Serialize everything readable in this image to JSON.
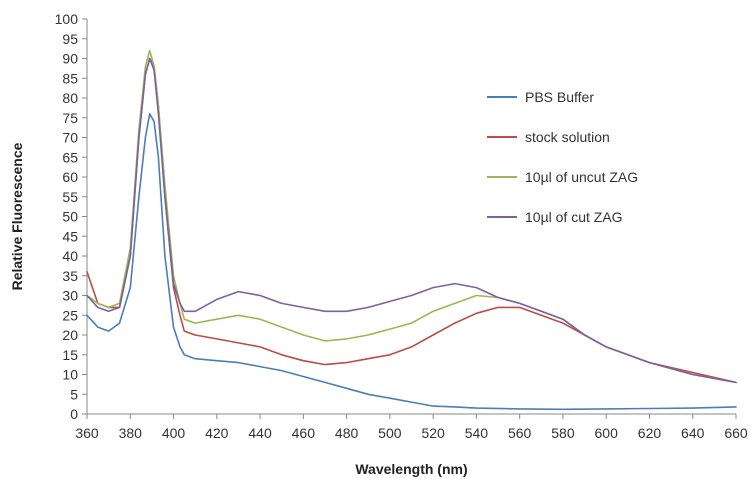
{
  "chart_data": {
    "type": "line",
    "title": "",
    "xlabel": "Wavelength (nm)",
    "ylabel": "Relative Fluorescence",
    "xlim": [
      360,
      660
    ],
    "ylim": [
      0,
      100
    ],
    "x_ticks": [
      360,
      380,
      400,
      420,
      440,
      460,
      480,
      500,
      520,
      540,
      560,
      580,
      600,
      620,
      640,
      660
    ],
    "y_ticks": [
      0,
      5,
      10,
      15,
      20,
      25,
      30,
      35,
      40,
      45,
      50,
      55,
      60,
      65,
      70,
      75,
      80,
      85,
      90,
      95,
      100
    ],
    "grid": false,
    "legend_position": "right",
    "series": [
      {
        "name": "PBS Buffer",
        "color": "#4a7ebb",
        "x": [
          360,
          365,
          370,
          375,
          380,
          384,
          387,
          389,
          391,
          393,
          396,
          400,
          403,
          405,
          410,
          420,
          430,
          440,
          450,
          460,
          470,
          480,
          490,
          500,
          510,
          520,
          530,
          540,
          560,
          580,
          600,
          620,
          640,
          660
        ],
        "y": [
          25,
          22,
          21,
          23,
          32,
          55,
          70,
          76,
          74,
          65,
          40,
          22,
          17,
          15,
          14,
          13.5,
          13,
          12,
          11,
          9.5,
          8,
          6.5,
          5,
          4,
          3,
          2,
          1.8,
          1.5,
          1.3,
          1.2,
          1.3,
          1.4,
          1.5,
          1.8
        ]
      },
      {
        "name": "stock solution",
        "color": "#be4b48",
        "x": [
          360,
          365,
          370,
          375,
          380,
          384,
          387,
          389,
          391,
          393,
          396,
          400,
          403,
          405,
          410,
          420,
          430,
          440,
          450,
          460,
          470,
          480,
          490,
          500,
          510,
          520,
          530,
          540,
          550,
          560,
          570,
          580,
          590,
          600,
          620,
          640,
          660
        ],
        "y": [
          36,
          28,
          27,
          27,
          40,
          70,
          86,
          90,
          88,
          78,
          55,
          32,
          25,
          21,
          20,
          19,
          18,
          17,
          15,
          13.5,
          12.5,
          13,
          14,
          15,
          17,
          20,
          23,
          25.5,
          27,
          27,
          25,
          23,
          20,
          17,
          13,
          10.5,
          8
        ]
      },
      {
        "name": "10µl of uncut ZAG",
        "color": "#98b954",
        "x": [
          360,
          365,
          370,
          375,
          380,
          384,
          387,
          389,
          391,
          393,
          396,
          400,
          403,
          405,
          410,
          420,
          430,
          440,
          450,
          460,
          470,
          480,
          490,
          500,
          510,
          520,
          530,
          540,
          550,
          560,
          570,
          580,
          590,
          600,
          620,
          640,
          660
        ],
        "y": [
          30,
          28,
          27,
          28,
          42,
          72,
          88,
          92,
          88,
          78,
          58,
          35,
          28,
          24,
          23,
          24,
          25,
          24,
          22,
          20,
          18.5,
          19,
          20,
          21.5,
          23,
          26,
          28,
          30,
          29.5,
          28,
          26,
          24,
          20,
          17,
          13,
          10,
          8
        ]
      },
      {
        "name": "10µl of cut ZAG",
        "color": "#7d60a0",
        "x": [
          360,
          365,
          370,
          375,
          380,
          384,
          387,
          389,
          391,
          393,
          396,
          400,
          403,
          405,
          410,
          420,
          430,
          440,
          450,
          460,
          470,
          480,
          490,
          500,
          510,
          520,
          530,
          540,
          550,
          560,
          570,
          580,
          590,
          600,
          620,
          640,
          660
        ],
        "y": [
          30,
          27,
          26,
          27,
          40,
          70,
          86,
          90,
          87,
          76,
          55,
          33,
          28,
          26,
          26,
          29,
          31,
          30,
          28,
          27,
          26,
          26,
          27,
          28.5,
          30,
          32,
          33,
          32,
          29.5,
          28,
          26,
          24,
          20,
          17,
          13,
          10,
          8
        ]
      }
    ]
  }
}
